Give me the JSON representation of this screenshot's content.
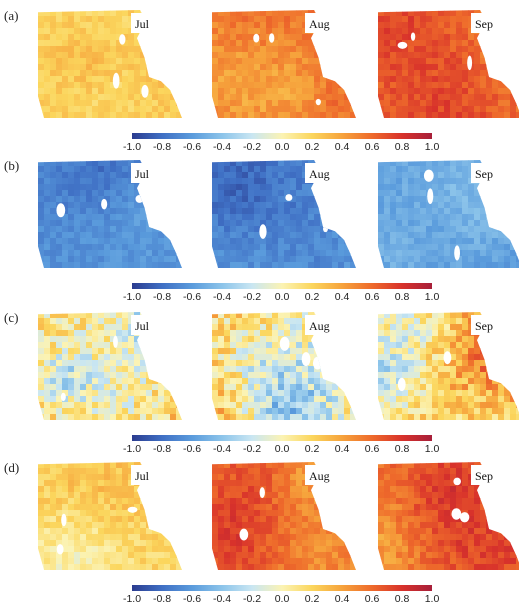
{
  "chart_data": {
    "type": "heatmap",
    "colorbar": {
      "range": [
        -1.0,
        1.0
      ],
      "ticks": [
        "-1.0",
        "-0.8",
        "-0.6",
        "-0.4",
        "-0.2",
        "0.0",
        "0.2",
        "0.4",
        "0.6",
        "0.8",
        "1.0"
      ],
      "colors": [
        "#2b3c8f",
        "#3f6fc4",
        "#5a9bdc",
        "#8cc4ea",
        "#c9e6f2",
        "#fbf3b4",
        "#fbd65d",
        "#f6a33c",
        "#ee6a2b",
        "#d8322b",
        "#a71f3a"
      ]
    },
    "panels": [
      {
        "label": "(a)",
        "maps": [
          {
            "month": "Jul",
            "mean": 0.22,
            "variation": 0.14
          },
          {
            "month": "Aug",
            "mean": 0.55,
            "variation": 0.16
          },
          {
            "month": "Sep",
            "mean": 0.62,
            "variation": 0.16
          }
        ]
      },
      {
        "label": "(b)",
        "maps": [
          {
            "month": "Jul",
            "mean": -0.65,
            "variation": 0.12
          },
          {
            "month": "Aug",
            "mean": -0.6,
            "variation": 0.14
          },
          {
            "month": "Sep",
            "mean": -0.62,
            "variation": 0.13
          }
        ]
      },
      {
        "label": "(c)",
        "maps": [
          {
            "month": "Jul",
            "mean": 0.15,
            "variation": 0.42
          },
          {
            "month": "Aug",
            "mean": 0.25,
            "variation": 0.45
          },
          {
            "month": "Sep",
            "mean": 0.12,
            "variation": 0.4
          }
        ]
      },
      {
        "label": "(d)",
        "maps": [
          {
            "month": "Jul",
            "mean": 0.22,
            "variation": 0.18
          },
          {
            "month": "Aug",
            "mean": 0.55,
            "variation": 0.16
          },
          {
            "month": "Sep",
            "mean": 0.62,
            "variation": 0.18
          }
        ]
      }
    ]
  }
}
